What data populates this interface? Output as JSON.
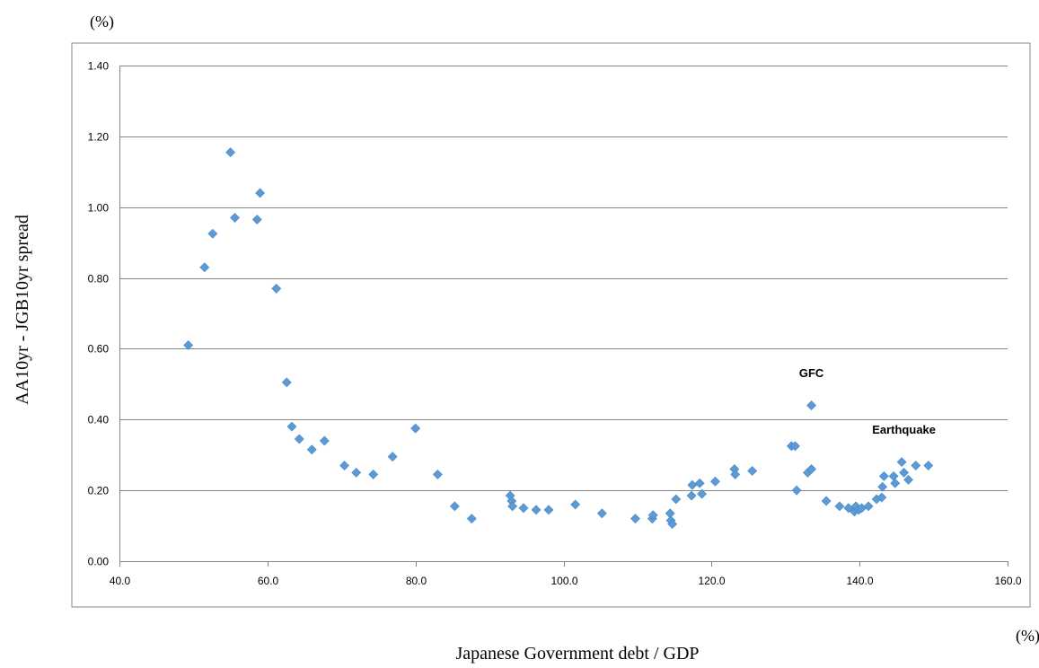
{
  "chart_data": {
    "type": "scatter",
    "y_unit_label": "(%)",
    "x_unit_label": "(%)",
    "xlabel": "Japanese Government debt / GDP",
    "ylabel": "AA10yr - JGB10yr spread",
    "xlim": [
      40,
      160
    ],
    "ylim": [
      0,
      1.4
    ],
    "x_ticks": [
      40,
      60,
      80,
      100,
      120,
      140,
      160
    ],
    "x_tick_labels": [
      "40.0",
      "60.0",
      "80.0",
      "100.0",
      "120.0",
      "140.0",
      "160.0"
    ],
    "y_ticks": [
      0,
      0.2,
      0.4,
      0.6,
      0.8,
      1.0,
      1.2,
      1.4
    ],
    "y_tick_labels": [
      "0.00",
      "0.20",
      "0.40",
      "0.60",
      "0.80",
      "1.00",
      "1.20",
      "1.40"
    ],
    "grid": "horizontal",
    "marker": "diamond",
    "marker_color": "#5B9BD5",
    "gridline_color": "#868686",
    "annotations": [
      {
        "text": "GFC",
        "x": 133.5,
        "y": 0.52
      },
      {
        "text": "Earthquake",
        "x": 146,
        "y": 0.36
      }
    ],
    "points": [
      [
        49.3,
        0.61
      ],
      [
        51.5,
        0.83
      ],
      [
        52.6,
        0.925
      ],
      [
        55.0,
        1.155
      ],
      [
        55.6,
        0.97
      ],
      [
        58.6,
        0.965
      ],
      [
        59.0,
        1.04
      ],
      [
        61.2,
        0.77
      ],
      [
        62.6,
        0.505
      ],
      [
        63.3,
        0.38
      ],
      [
        64.3,
        0.345
      ],
      [
        66.0,
        0.315
      ],
      [
        67.7,
        0.34
      ],
      [
        70.4,
        0.27
      ],
      [
        72.0,
        0.25
      ],
      [
        74.3,
        0.245
      ],
      [
        76.9,
        0.295
      ],
      [
        80.0,
        0.375
      ],
      [
        83.0,
        0.245
      ],
      [
        85.3,
        0.155
      ],
      [
        87.6,
        0.12
      ],
      [
        92.8,
        0.185
      ],
      [
        93.0,
        0.17
      ],
      [
        93.1,
        0.155
      ],
      [
        94.6,
        0.15
      ],
      [
        96.3,
        0.145
      ],
      [
        98.0,
        0.145
      ],
      [
        101.6,
        0.16
      ],
      [
        105.2,
        0.135
      ],
      [
        109.7,
        0.12
      ],
      [
        112.0,
        0.12
      ],
      [
        112.1,
        0.13
      ],
      [
        114.4,
        0.135
      ],
      [
        114.5,
        0.115
      ],
      [
        114.7,
        0.105
      ],
      [
        115.2,
        0.175
      ],
      [
        117.3,
        0.185
      ],
      [
        117.4,
        0.215
      ],
      [
        118.4,
        0.22
      ],
      [
        118.7,
        0.19
      ],
      [
        120.5,
        0.225
      ],
      [
        123.1,
        0.26
      ],
      [
        123.2,
        0.245
      ],
      [
        125.5,
        0.255
      ],
      [
        130.8,
        0.325
      ],
      [
        131.3,
        0.325
      ],
      [
        131.5,
        0.2
      ],
      [
        133.0,
        0.25
      ],
      [
        133.5,
        0.26
      ],
      [
        133.5,
        0.44
      ],
      [
        135.5,
        0.17
      ],
      [
        137.3,
        0.155
      ],
      [
        138.5,
        0.15
      ],
      [
        139.3,
        0.14
      ],
      [
        139.5,
        0.155
      ],
      [
        139.9,
        0.145
      ],
      [
        140.3,
        0.15
      ],
      [
        141.2,
        0.155
      ],
      [
        142.3,
        0.175
      ],
      [
        143.0,
        0.18
      ],
      [
        143.1,
        0.21
      ],
      [
        143.3,
        0.24
      ],
      [
        144.6,
        0.24
      ],
      [
        144.8,
        0.22
      ],
      [
        145.7,
        0.28
      ],
      [
        146.0,
        0.25
      ],
      [
        146.6,
        0.23
      ],
      [
        147.6,
        0.27
      ],
      [
        149.3,
        0.27
      ]
    ]
  }
}
